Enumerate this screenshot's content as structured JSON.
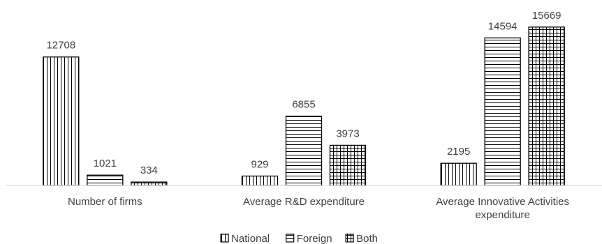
{
  "chart_data": {
    "type": "bar",
    "title": "",
    "xlabel": "",
    "ylabel": "",
    "categories": [
      [
        "Number of firms"
      ],
      [
        "Average R&D expenditure"
      ],
      [
        "Average Innovative Activities",
        "expenditure"
      ]
    ],
    "series": [
      {
        "name": "National",
        "values": [
          12708,
          929,
          2195
        ],
        "pattern": "vertical-lines"
      },
      {
        "name": "Foreign",
        "values": [
          1021,
          6855,
          14594
        ],
        "pattern": "horizontal-lines"
      },
      {
        "name": "Both",
        "values": [
          334,
          3973,
          15669
        ],
        "pattern": "grid"
      }
    ],
    "ylim": [
      0,
      16000
    ],
    "grid": false,
    "legend_position": "bottom",
    "colors": {
      "stroke": "#000000",
      "fill": "#ffffff",
      "text": "#404040",
      "axis": "#d9d9d9"
    }
  }
}
